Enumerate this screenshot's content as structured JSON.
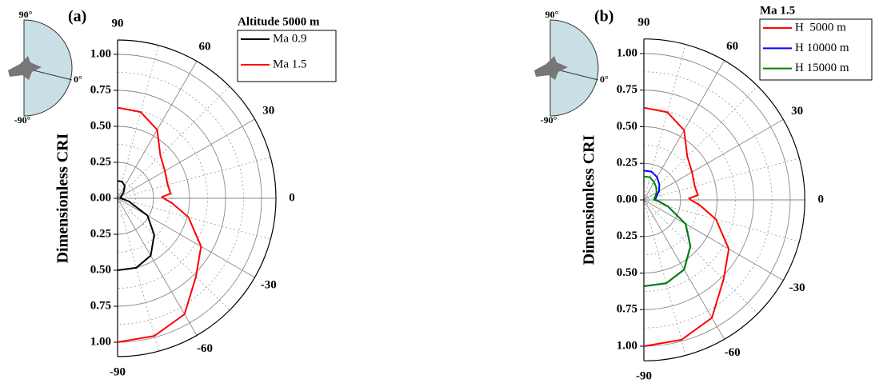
{
  "chart_data": [
    {
      "type": "polar",
      "panel": "(a)",
      "ylabel": "Dimensionless CRI",
      "legend_title": "Altitude 5000 m",
      "inset_labels": [
        "90°",
        "0°",
        "-90°"
      ],
      "theta": [
        90,
        75,
        60,
        45,
        30,
        15,
        5,
        2,
        0,
        -5,
        -15,
        -30,
        -45,
        -60,
        -75,
        -90
      ],
      "series": [
        {
          "name": "Ma 0.9",
          "color": "#000000",
          "values": [
            0.12,
            0.12,
            0.1,
            0.06,
            0.03,
            0.02,
            0.02,
            0.02,
            0.02,
            0.03,
            0.08,
            0.24,
            0.36,
            0.46,
            0.5,
            0.5
          ]
        },
        {
          "name": "Ma 1.5",
          "color": "#ff0000",
          "values": [
            0.63,
            0.62,
            0.55,
            0.42,
            0.38,
            0.36,
            0.37,
            0.31,
            0.32,
            0.38,
            0.51,
            0.67,
            0.77,
            0.93,
            0.99,
            1.0
          ]
        }
      ],
      "ylim": [
        0,
        1.1
      ],
      "yticks": [
        {
          "value": 0,
          "label": "0.00"
        },
        {
          "value": 0.25,
          "label": "0.25"
        },
        {
          "value": 0.5,
          "label": "0.50"
        },
        {
          "value": 0.75,
          "label": "0.75"
        },
        {
          "value": 1,
          "label": "1.00"
        }
      ],
      "xlim": [
        -90,
        90
      ],
      "xticks": [
        -90,
        -60,
        -30,
        0,
        30,
        60,
        90
      ],
      "grid": true
    },
    {
      "type": "polar",
      "panel": "(b)",
      "ylabel": "Dimensionless CRI",
      "legend_title": "Ma 1.5",
      "inset_labels": [
        "90°",
        "0°",
        "-90°"
      ],
      "theta": [
        90,
        75,
        60,
        45,
        30,
        15,
        5,
        2,
        0,
        -5,
        -15,
        -30,
        -45,
        -60,
        -75,
        -90
      ],
      "series": [
        {
          "name": "H  5000 m",
          "color": "#ff0000",
          "values": [
            0.63,
            0.62,
            0.55,
            0.42,
            0.38,
            0.36,
            0.37,
            0.31,
            0.32,
            0.38,
            0.51,
            0.67,
            0.77,
            0.93,
            0.99,
            1.0
          ]
        },
        {
          "name": "H 10000 m",
          "color": "#0000ff",
          "values": [
            0.2,
            0.2,
            0.18,
            0.15,
            0.12,
            0.09,
            0.08,
            0.08,
            0.08,
            0.1,
            0.17,
            0.33,
            0.45,
            0.55,
            0.59,
            0.59
          ]
        },
        {
          "name": "H 15000 m",
          "color": "#008000",
          "values": [
            0.16,
            0.16,
            0.14,
            0.12,
            0.1,
            0.08,
            0.07,
            0.07,
            0.07,
            0.1,
            0.17,
            0.33,
            0.45,
            0.55,
            0.59,
            0.59
          ]
        }
      ],
      "ylim": [
        0,
        1.1
      ],
      "yticks": [
        {
          "value": 0,
          "label": "0.00"
        },
        {
          "value": 0.25,
          "label": "0.25"
        },
        {
          "value": 0.5,
          "label": "0.50"
        },
        {
          "value": 0.75,
          "label": "0.75"
        },
        {
          "value": 1,
          "label": "1.00"
        }
      ],
      "xlim": [
        -90,
        90
      ],
      "xticks": [
        -90,
        -60,
        -30,
        0,
        30,
        60,
        90
      ],
      "grid": true
    }
  ]
}
